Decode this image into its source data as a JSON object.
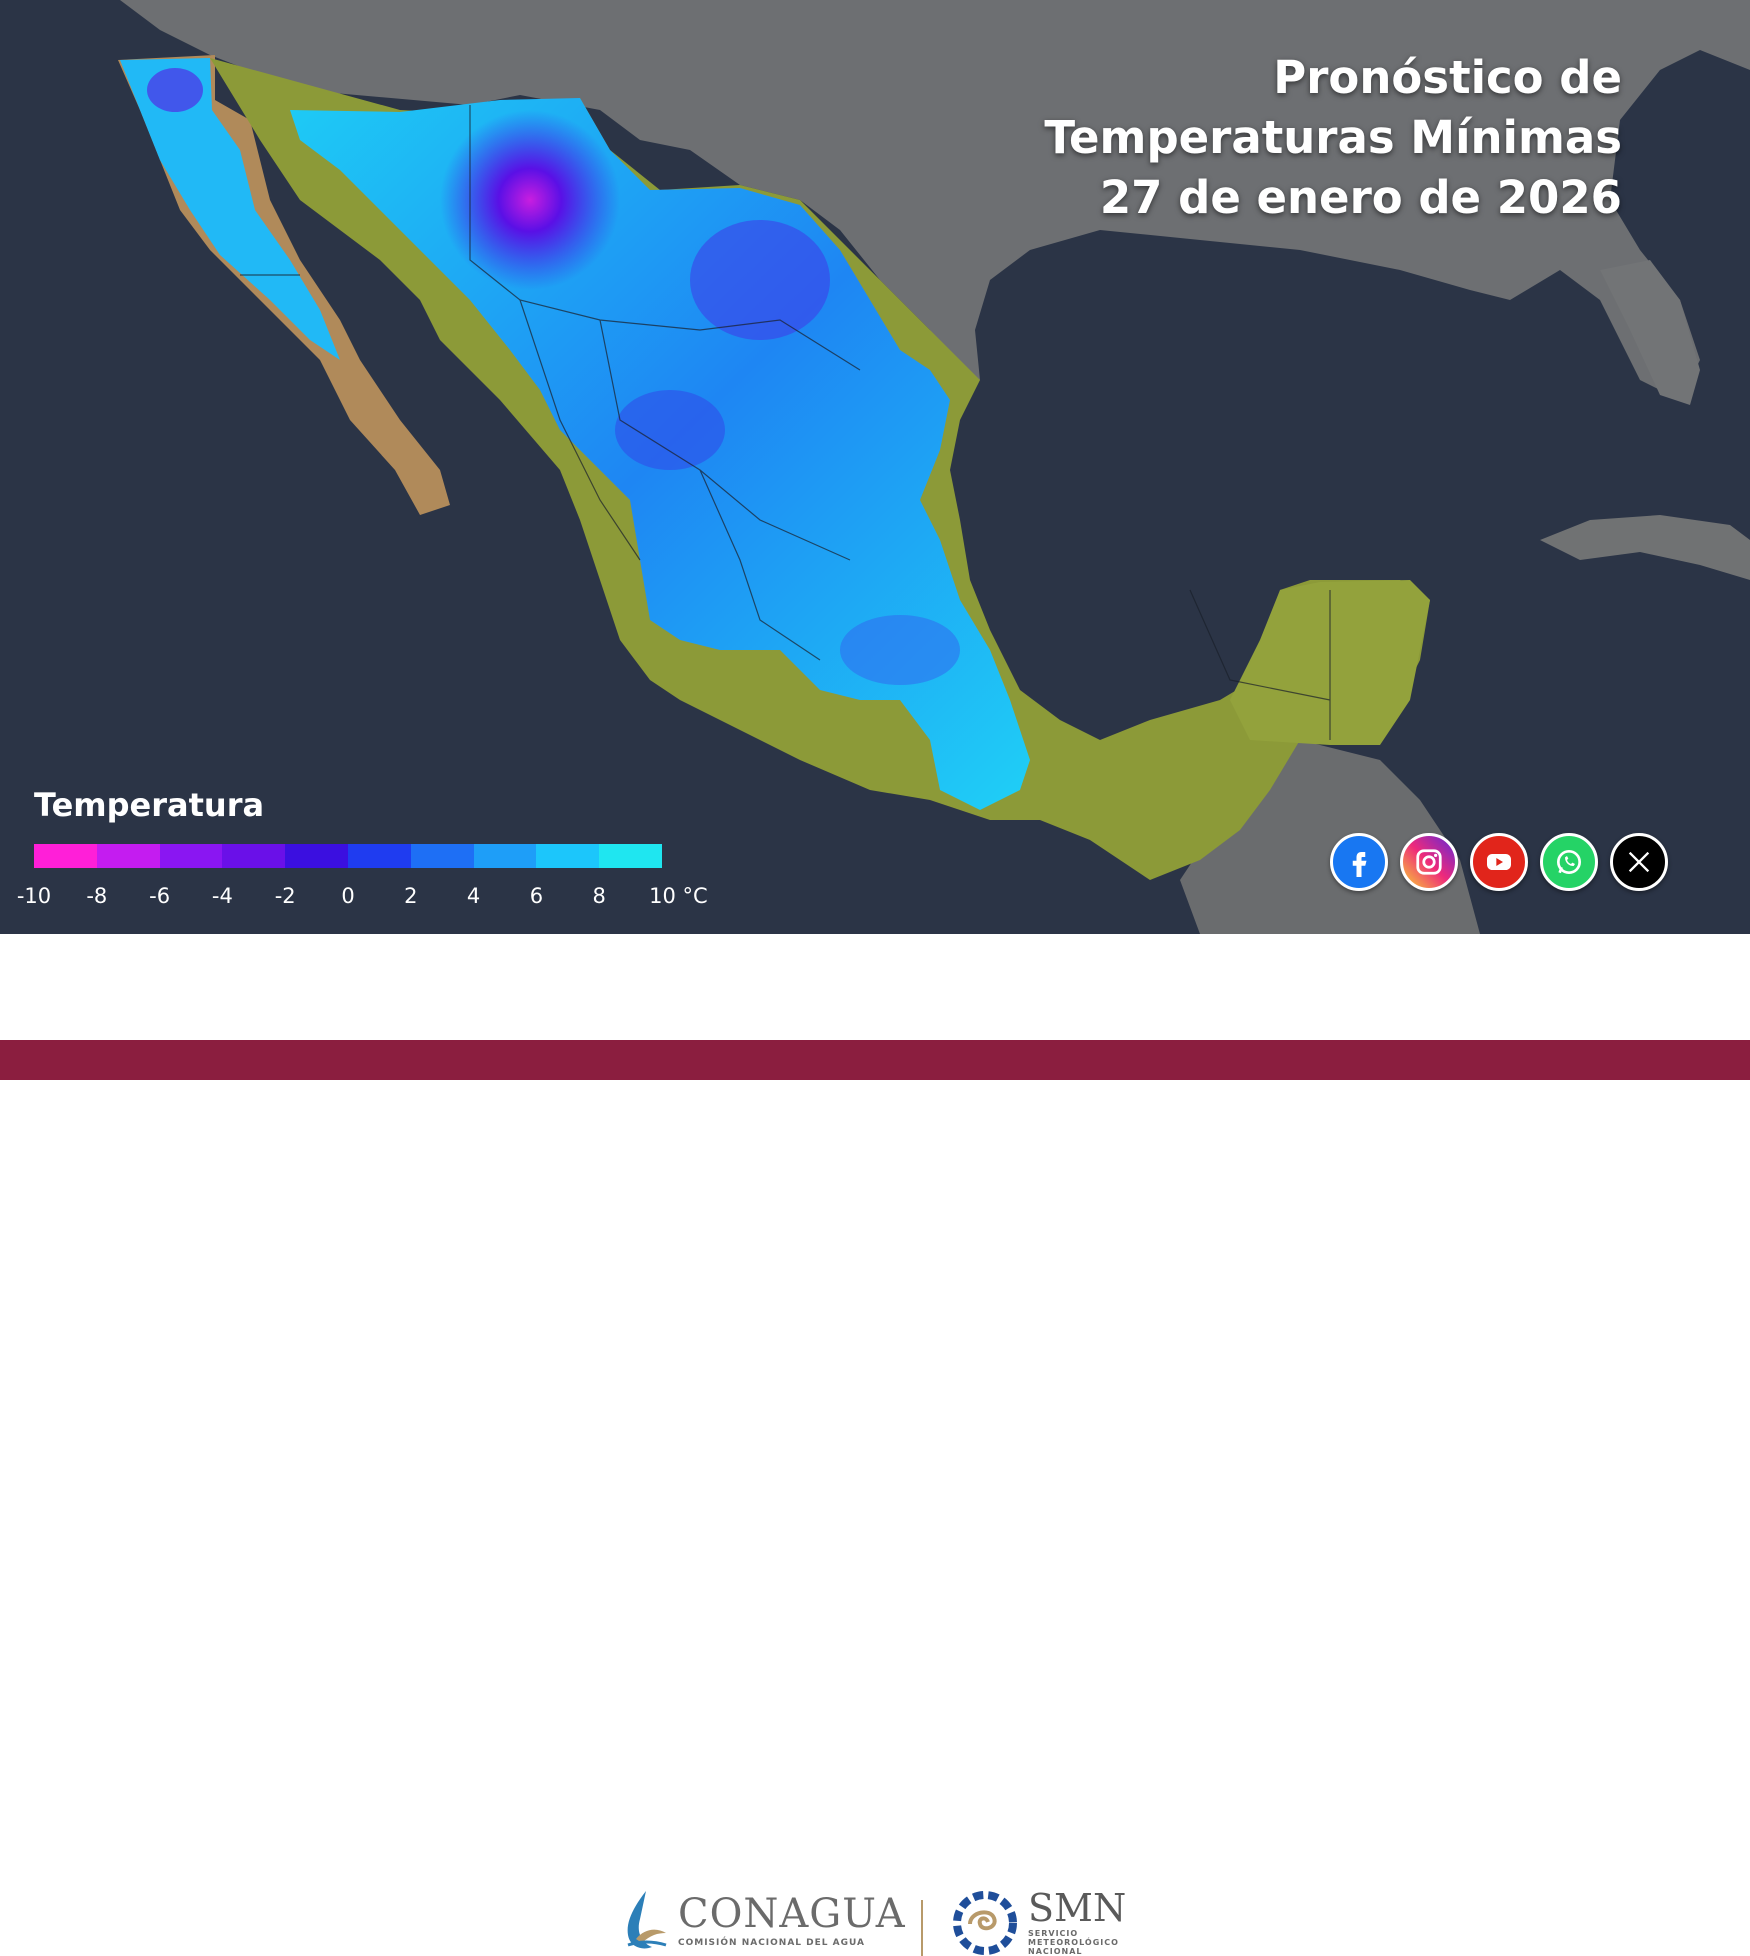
{
  "title": {
    "line1": "Pronóstico de",
    "line2": "Temperaturas Mínimas",
    "line3": "27 de enero de 2026"
  },
  "legend": {
    "title": "Temperatura",
    "ticks": [
      "-10",
      "-8",
      "-6",
      "-4",
      "-2",
      "0",
      "2",
      "4",
      "6",
      "8",
      "10 °C"
    ],
    "colors": [
      "#ff1fd8",
      "#c41cf0",
      "#8a16f2",
      "#6a10e8",
      "#3b0fe0",
      "#1f3cf0",
      "#1e6ff5",
      "#1e9ef8",
      "#1cc6fb",
      "#1fe6f0"
    ]
  },
  "colors": {
    "ocean": "#2b3446",
    "land_gray": "#6e6e6e",
    "land_veg": "#8c9a3a",
    "footer_bar": "#8b1e3f"
  },
  "social": [
    {
      "icon": "facebook-icon",
      "color": "#1877f2"
    },
    {
      "icon": "instagram-icon",
      "color": "#d6249f"
    },
    {
      "icon": "youtube-icon",
      "color": "#e1251b"
    },
    {
      "icon": "whatsapp-icon",
      "color": "#25d366"
    },
    {
      "icon": "x-icon",
      "color": "#000000"
    }
  ],
  "footer": {
    "conagua_name": "CONAGUA",
    "conagua_sub": "COMISIÓN NACIONAL DEL AGUA",
    "smn_name": "SMN",
    "smn_sub_1": "SERVICIO",
    "smn_sub_2": "METEOROLÓGICO",
    "smn_sub_3": "NACIONAL"
  }
}
